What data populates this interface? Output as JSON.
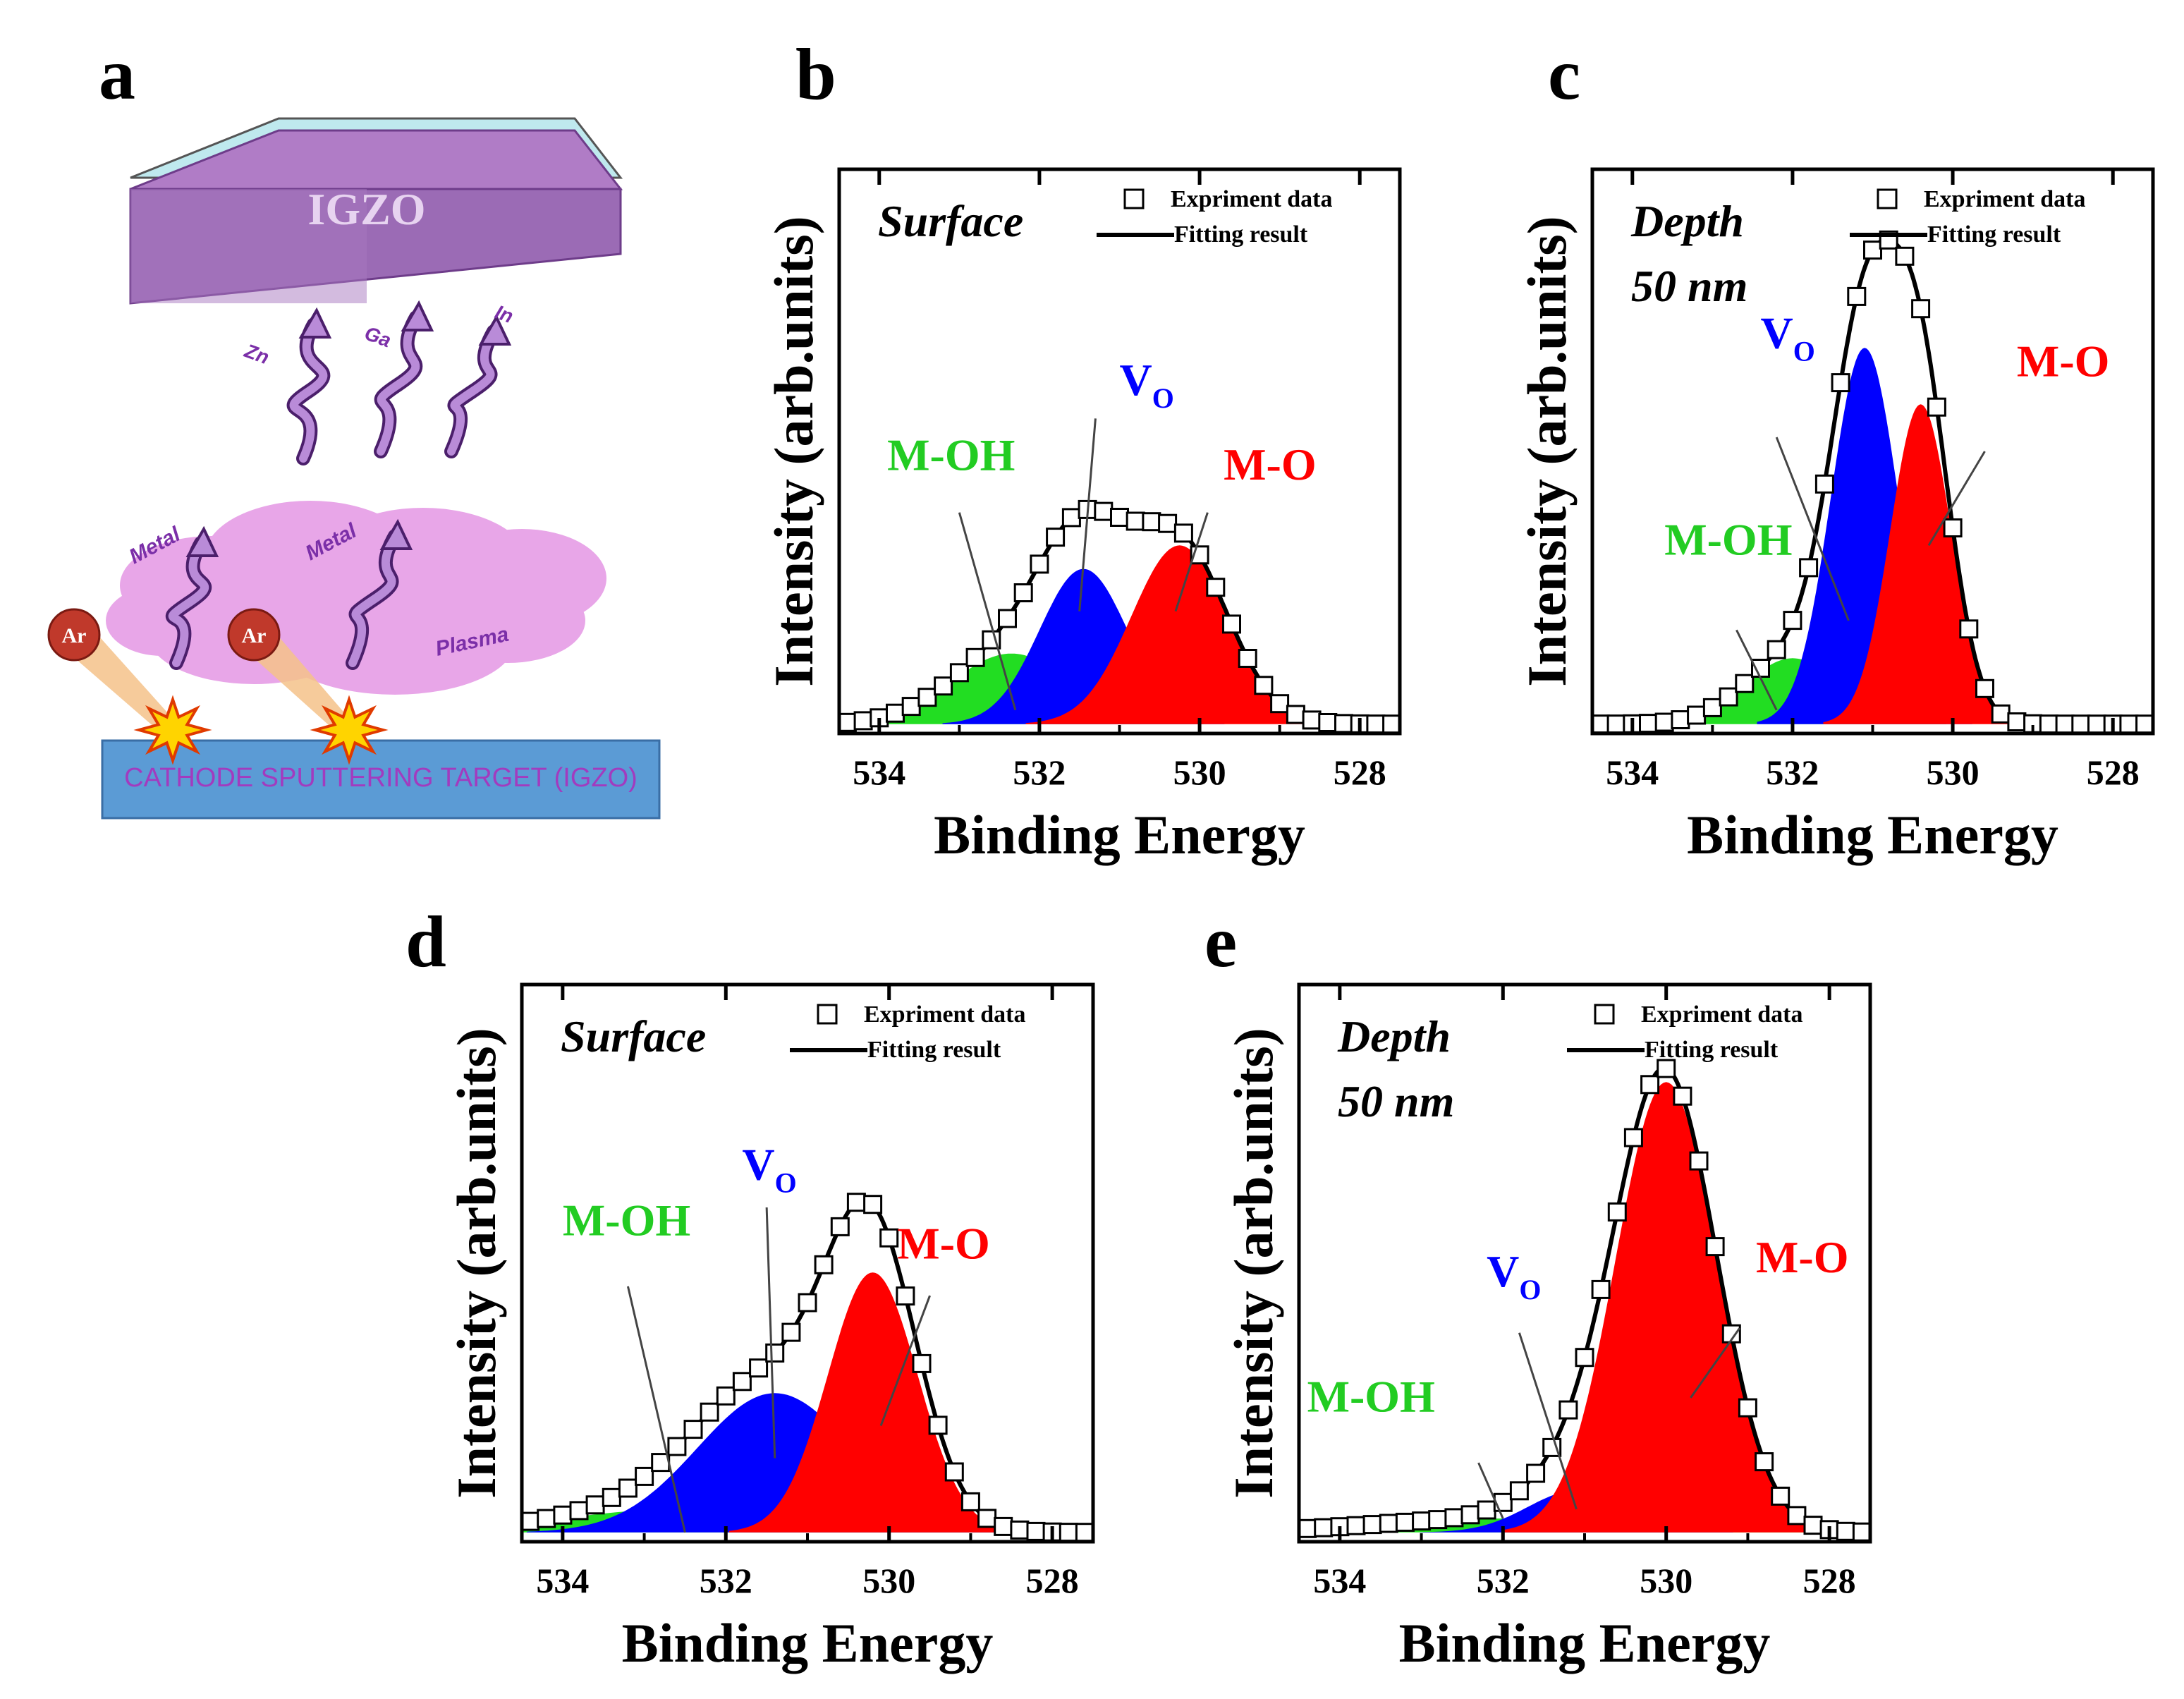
{
  "panel_a": {
    "label": "a",
    "film": "IGZO",
    "species": [
      "Zn",
      "Ga",
      "In"
    ],
    "metal_labels": [
      "Metal",
      "Metal"
    ],
    "plasma": "Plasma",
    "ion": "Ar",
    "target": "CATHODE SPUTTERING TARGET (IGZO)",
    "colors": {
      "film": "#9b59b6",
      "plasma": "#e8a6e8",
      "target": "#5b9bd5",
      "ion": "#c0392b",
      "arrow": "#7b2fa8"
    }
  },
  "chart_data": [
    {
      "id": "b",
      "type": "area",
      "panel_label": "b",
      "condition_lines": [
        "Surface"
      ],
      "xlabel": "Binding Energy",
      "ylabel": "Intensity (arb.units)",
      "xlim": [
        534.5,
        527.5
      ],
      "ylim": [
        0,
        1.2
      ],
      "xticks": [
        534,
        532,
        530,
        528
      ],
      "legend": {
        "markers": "Expriment data",
        "line": "Fitting result",
        "position": "top-right"
      },
      "baseline": 0.02,
      "components": [
        {
          "name": "M-OH",
          "color": "#22dd22",
          "center": 532.35,
          "amp": 0.15,
          "sigma": 0.75,
          "label_color": "#22cc22"
        },
        {
          "name": "Vo",
          "color": "#0000ff",
          "center": 531.45,
          "amp": 0.33,
          "sigma": 0.55,
          "label_color": "#0000ff"
        },
        {
          "name": "M-O",
          "color": "#ff0000",
          "center": 530.25,
          "amp": 0.38,
          "sigma": 0.6,
          "label_color": "#ff0000"
        }
      ],
      "labels": {
        "M-OH": {
          "text": "M-OH",
          "at": [
            533.9,
            0.56
          ]
        },
        "Vo": {
          "text": "V",
          "sub": "O",
          "at": [
            531.0,
            0.72
          ]
        },
        "M-O": {
          "text": "M-O",
          "at": [
            529.7,
            0.54
          ]
        }
      },
      "leaders": {
        "M-OH": [
          [
            533.0,
            0.47
          ],
          [
            532.3,
            0.05
          ]
        ],
        "Vo": [
          [
            531.3,
            0.67
          ],
          [
            531.5,
            0.26
          ]
        ],
        "M-O": [
          [
            529.9,
            0.47
          ],
          [
            530.3,
            0.26
          ]
        ]
      }
    },
    {
      "id": "c",
      "type": "area",
      "panel_label": "c",
      "condition_lines": [
        "Depth",
        "50 nm"
      ],
      "xlabel": "Binding Energy",
      "ylabel": "Intensity (arb.units)",
      "xlim": [
        534.5,
        527.5
      ],
      "ylim": [
        0,
        1.2
      ],
      "xticks": [
        534,
        532,
        530,
        528
      ],
      "legend": {
        "markers": "Expriment data",
        "line": "Fitting result",
        "position": "top-right"
      },
      "baseline": 0.02,
      "components": [
        {
          "name": "M-OH",
          "color": "#22dd22",
          "center": 532.0,
          "amp": 0.14,
          "sigma": 0.6,
          "label_color": "#22cc22"
        },
        {
          "name": "Vo",
          "color": "#0000ff",
          "center": 531.1,
          "amp": 0.8,
          "sigma": 0.42,
          "label_color": "#0000ff"
        },
        {
          "name": "M-O",
          "color": "#ff0000",
          "center": 530.4,
          "amp": 0.68,
          "sigma": 0.38,
          "label_color": "#ff0000"
        }
      ],
      "labels": {
        "M-OH": {
          "text": "M-OH",
          "at": [
            533.6,
            0.38
          ]
        },
        "Vo": {
          "text": "V",
          "sub": "O",
          "at": [
            532.4,
            0.82
          ]
        },
        "M-O": {
          "text": "M-O",
          "at": [
            529.2,
            0.76
          ]
        }
      },
      "leaders": {
        "M-OH": [
          [
            532.7,
            0.22
          ],
          [
            532.2,
            0.05
          ]
        ],
        "Vo": [
          [
            532.2,
            0.63
          ],
          [
            531.3,
            0.24
          ]
        ],
        "M-O": [
          [
            529.6,
            0.6
          ],
          [
            530.3,
            0.4
          ]
        ]
      }
    },
    {
      "id": "d",
      "type": "area",
      "panel_label": "d",
      "condition_lines": [
        "Surface"
      ],
      "xlabel": "Binding Energy",
      "ylabel": "Intensity (arb.units)",
      "xlim": [
        534.5,
        527.5
      ],
      "ylim": [
        0,
        1.2
      ],
      "xticks": [
        534,
        532,
        530,
        528
      ],
      "legend": {
        "markers": "Expriment data",
        "line": "Fitting result",
        "position": "top-right"
      },
      "baseline": 0.02,
      "components": [
        {
          "name": "M-OH",
          "color": "#22dd22",
          "center": 532.6,
          "amp": 0.05,
          "sigma": 1.4,
          "label_color": "#22cc22"
        },
        {
          "name": "Vo",
          "color": "#0000ff",
          "center": 531.4,
          "amp": 0.3,
          "sigma": 0.95,
          "label_color": "#0000ff"
        },
        {
          "name": "M-O",
          "color": "#ff0000",
          "center": 530.2,
          "amp": 0.56,
          "sigma": 0.55,
          "label_color": "#ff0000"
        }
      ],
      "labels": {
        "M-OH": {
          "text": "M-OH",
          "at": [
            534.0,
            0.66
          ]
        },
        "Vo": {
          "text": "V",
          "sub": "O",
          "at": [
            531.8,
            0.78
          ]
        },
        "M-O": {
          "text": "M-O",
          "at": [
            529.9,
            0.61
          ]
        }
      },
      "leaders": {
        "M-OH": [
          [
            533.2,
            0.55
          ],
          [
            532.5,
            0.02
          ]
        ],
        "Vo": [
          [
            531.5,
            0.72
          ],
          [
            531.4,
            0.18
          ]
        ],
        "M-O": [
          [
            529.5,
            0.53
          ],
          [
            530.1,
            0.25
          ]
        ]
      }
    },
    {
      "id": "e",
      "type": "area",
      "panel_label": "e",
      "condition_lines": [
        "Depth",
        "50 nm"
      ],
      "xlabel": "Binding Energy",
      "ylabel": "Intensity (arb.units)",
      "xlim": [
        534.5,
        527.5
      ],
      "ylim": [
        0,
        1.2
      ],
      "xticks": [
        534,
        532,
        530,
        528
      ],
      "legend": {
        "markers": "Expriment data",
        "line": "Fitting result",
        "position": "top-right"
      },
      "baseline": 0.02,
      "components": [
        {
          "name": "M-OH",
          "color": "#22dd22",
          "center": 532.0,
          "amp": 0.03,
          "sigma": 1.5,
          "label_color": "#22cc22"
        },
        {
          "name": "Vo",
          "color": "#0000ff",
          "center": 531.1,
          "amp": 0.09,
          "sigma": 0.6,
          "label_color": "#0000ff"
        },
        {
          "name": "M-O",
          "color": "#ff0000",
          "center": 530.0,
          "amp": 0.97,
          "sigma": 0.62,
          "label_color": "#ff0000"
        }
      ],
      "labels": {
        "M-OH": {
          "text": "M-OH",
          "at": [
            534.4,
            0.28
          ]
        },
        "Vo": {
          "text": "V",
          "sub": "O",
          "at": [
            532.2,
            0.55
          ]
        },
        "M-O": {
          "text": "M-O",
          "at": [
            528.9,
            0.58
          ]
        }
      },
      "leaders": {
        "M-OH": [
          [
            532.3,
            0.17
          ],
          [
            532.0,
            0.05
          ]
        ],
        "Vo": [
          [
            531.8,
            0.45
          ],
          [
            531.1,
            0.07
          ]
        ],
        "M-O": [
          [
            529.1,
            0.46
          ],
          [
            529.7,
            0.31
          ]
        ]
      }
    }
  ]
}
